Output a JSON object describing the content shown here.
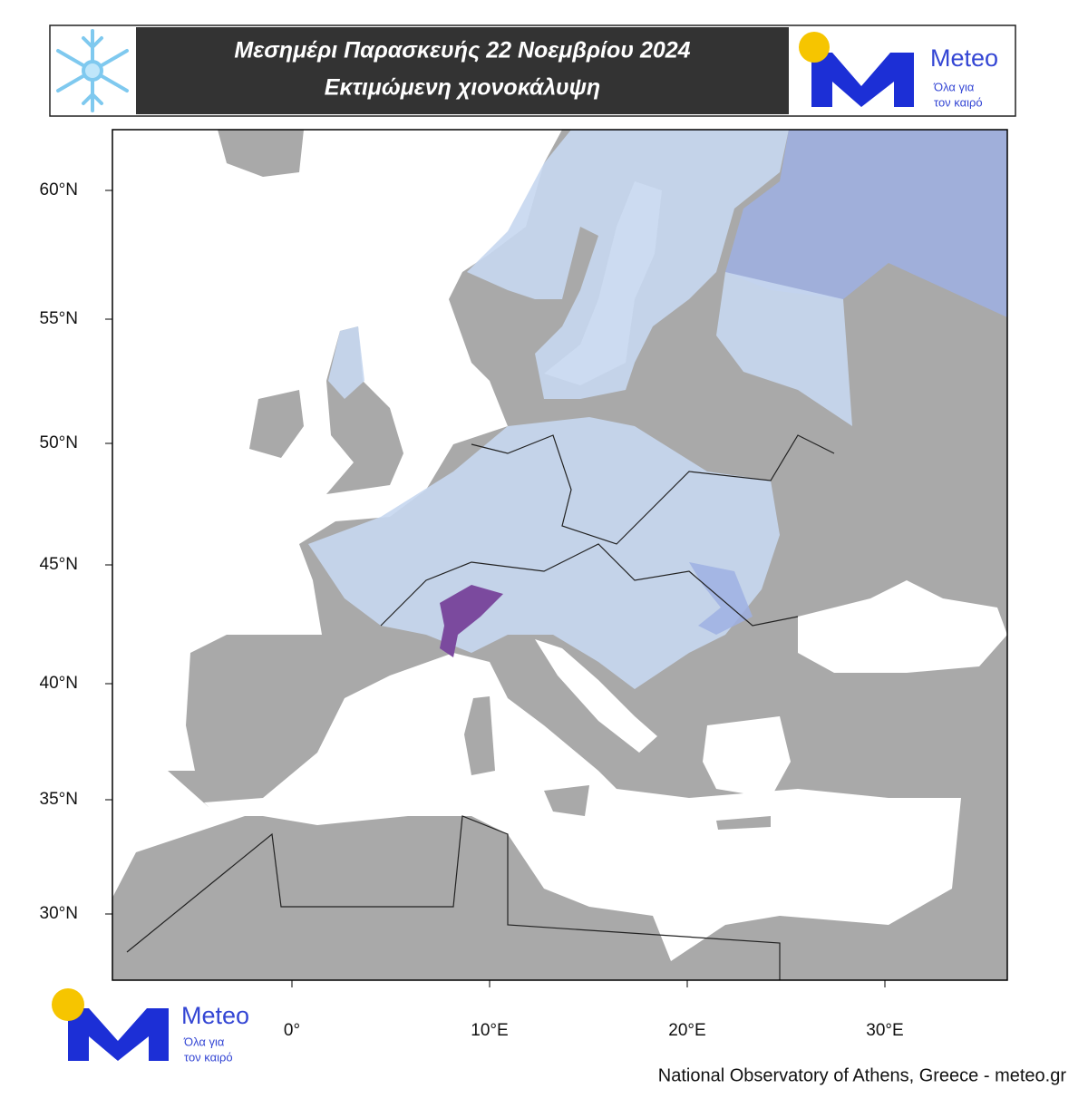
{
  "header": {
    "title_line1": "Μεσημέρι Παρασκευής 22 Νοεμβρίου 2024",
    "title_line2": "Εκτιμώμενη χιονοκάλυψη"
  },
  "logo": {
    "name": "Meteo",
    "tagline_line1": "Όλα για",
    "tagline_line2": "τον καιρό"
  },
  "map": {
    "lat_ticks": [
      {
        "value": 60,
        "label": "60°N"
      },
      {
        "value": 55,
        "label": "55°N"
      },
      {
        "value": 50,
        "label": "50°N"
      },
      {
        "value": 45,
        "label": "45°N"
      },
      {
        "value": 40,
        "label": "40°N"
      },
      {
        "value": 35,
        "label": "35°N"
      },
      {
        "value": 30,
        "label": "30°N"
      }
    ],
    "lon_ticks": [
      {
        "value": 0,
        "label": "0°"
      },
      {
        "value": 10,
        "label": "10°E"
      },
      {
        "value": 20,
        "label": "20°E"
      },
      {
        "value": 30,
        "label": "30°E"
      }
    ]
  },
  "credit": "National Observatory of Athens, Greece - meteo.gr"
}
